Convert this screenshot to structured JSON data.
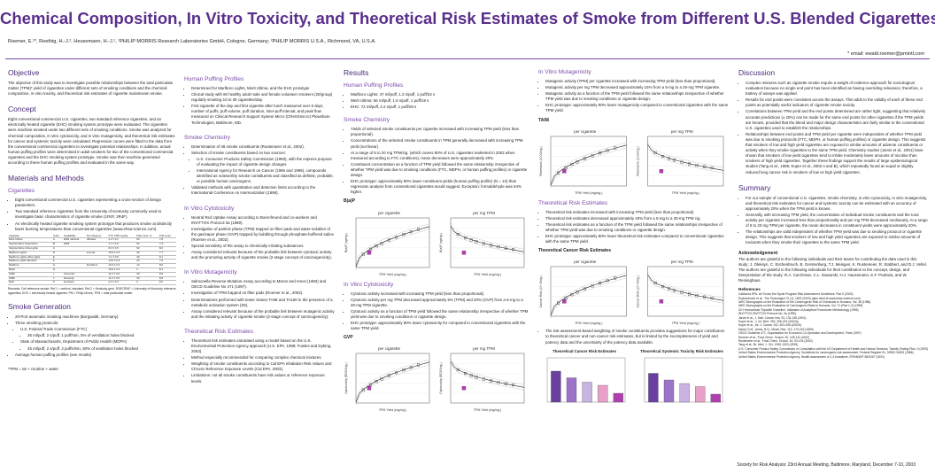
{
  "header": {
    "title": "Chemical Composition, In Vitro Toxicity, and Theoretical Risk Estimates of Smoke from Different U.S. Blended Cigarettes",
    "authors": "Roemer, E.¹*, Roethig, H.-J.², Heusemann, H.-J.¹, ¹PHILIP MORRIS Research Laboratories GmbH, Cologne, Germany; ²PHILIP MORRIS U.S.A., Richmond, VA, U.S.A.",
    "email": "* email: ewald.roemer@pmintl.com"
  },
  "col1": {
    "objective_h": "Objective",
    "objective_p": "The objective of this study was to investigate possible relationships between the total particulate matter (TPM)* yield of cigarettes under different sets of smoking conditions and the chemical composition, in vitro toxicity, and theoretical risk estimates of cigarette mainstream smoke.",
    "concept_h": "Concept",
    "concept_p": "Eight conventional commercial U.S. cigarettes, two standard reference cigarettes, and an electrically heated cigarette (EHC) smoking system prototype were evaluated. The cigarettes were machine-smoked under two different sets of smoking conditions. Smoke was analyzed for chemical composition, in vitro cytotoxicity, and in vitro mutagenicity, and theoretical risk estimates for cancer and systemic toxicity were calculated. Regression curves were fitted to the data from the conventional commercial cigarettes to investigate potential relationships. In addition, actual human puffing profiles were determined in adult smokers for two of the conventional commercial cigarettes and the EHC smoking system prototype. Smoke was then machine-generated according to these human puffing profiles and evaluated in the same way.",
    "mm_h": "Materials and Methods",
    "cig_h": "Cigarettes",
    "cig_items": [
      "Eight conventional commercial U.S. cigarettes representing a cross-section of design parameters.",
      "Two standard reference cigarettes from the University of Kentucky commonly used to investigate basic characteristics of cigarette smoke (1R4F, 2R4F).",
      "An electrically heated cigarette smoking system prototype that produces smoke at distinctly lower burning temperatures than conventional cigarettes (www.ehsa-science.com)."
    ],
    "table_head": [
      "Cigarette",
      "Code",
      "Availability",
      "Tar Category",
      "FTC TPM mg/cig",
      "Filter Vent. %",
      "Puff count"
    ],
    "table_rows": [
      [
        "Merit Ultima",
        "A",
        "2003 national",
        "Ultralow",
        "2.2 ± 0.1",
        "63",
        "7.8"
      ],
      [
        "Virginia Slims Superslims",
        "B",
        "2003",
        "",
        "7.7 ± 0.3",
        "52",
        "7.3"
      ],
      [
        "Virginia Slims Ultra Lights",
        "C",
        "",
        "",
        "8.3 ± 0.5",
        "52",
        "8.0"
      ],
      [
        "Marlboro Lights",
        "D",
        "",
        "Low-tar",
        "10.9 ± 0.6",
        "30",
        "7.7"
      ],
      [
        "Marlboro Lights Ultra Lights",
        "E",
        "",
        "",
        "7.1 ± 0.5",
        "40",
        "8.1"
      ],
      [
        "Marlboro Lights Menthol",
        "F",
        "",
        "",
        "13.0 ± 0.5",
        "23",
        "7.5"
      ],
      [
        "Marlboro",
        "G",
        "",
        "Full-flavor",
        "16.3 ± 0.4",
        "13",
        "8.6"
      ],
      [
        "Basic",
        "H",
        "",
        "",
        "15.6 ± 0.4",
        "2",
        "8.1"
      ],
      [
        "1R4F",
        "I",
        "University",
        "",
        "11.0 ± 0.6",
        "30",
        "8.9"
      ],
      [
        "2R4F",
        "J",
        "Kentucky",
        "",
        "11.4 ± 0.5",
        "30",
        "8.8"
      ],
      [
        "EHC",
        "K",
        "prototype",
        "",
        "2.4 ± 0.3",
        "0",
        "8.0"
      ]
    ],
    "table_note": "Remarks: Cell reference smoke: Ref.1 = method. standard, Ref.2 = Kentucky-gest. 1R4F/2R4F = University of Kentucky reference cigarettes; EHC = electrically heated cigarette; PM = Philip Morris; TPM = total particulate matter",
    "gen_h": "Smoke Generation",
    "gen_items": [
      "20-Port automatic smoking machines (Borgwaldt, Germany)",
      "Three smoking protocols:",
      "U.S. Federal Trade Commission (FTC)",
      "35 ml/puff, 2 s/puff, 1 puff/min, 0% of ventilation holes blocked",
      "State of Massachusetts, Department of Public Health (MDPH)",
      "45 ml/puff, 2 s/puff, 2 puffs/min, 50% of ventilation holes blocked",
      "Average human puffing profiles (see results)"
    ],
    "tpm_note": "*TPM = tar + nicotine + water"
  },
  "col2": {
    "hpp_h": "Human Puffing Profiles",
    "hpp_items": [
      "Determined for Marlboro Lights, Merit Ultima, and the EHC prototype",
      "Clinical study with 60 healthy adult male and female volunteer smokers (20/group) regularly smoking 10 to 30 cigarettes/day.",
      "First cigarette of the day and first cigarette after lunch measured over 8 days, number of puffs, puff volume, puff duration, inter-puff interval, and peak flow measured on Clinical Research Support System Micro (CReSSmicro) Plowshare Technologies, Baltimore, MD."
    ],
    "chem_h": "Smoke Chemistry",
    "chem_items": [
      "Determination of 48 smoke constituents (Rustemeier et al., 2002).",
      "Selection of smoke constituents based on two sources:",
      "U.S. Consumer Products Safety Commission (1993), with the express purpose of evaluating the impact of cigarette design changes.",
      "International Agency for Research on Cancer (1986 and 1999), compounds identified as noteworthy smoke constituents and classified as definite, probable, or possible human carcinogens.",
      "Validated methods with quantitation and detection limits according to the International Conference on Harmonization (1996)."
    ],
    "cyto_h": "In Vitro Cytotoxicity",
    "cyto_items": [
      "Neutral Red Uptake Assay according to Borenfreund and co-workers and INVITTOX Protocol 3a (1990).",
      "Investigation of particle phase (TPM) trapped on filter pads and water-solubles of the gas/vapor phase (GVP) trapped by bubbling through phosphate-buffered saline (Roemer et al., 2002).",
      "Special sensitivity of the assay to chemically irritating substances.",
      "Assay considered relevant because of the probable link between cytotoxic activity and the promoting activity of cigarette smoke (2-stage concept of carcinogenicity)."
    ],
    "muta_h": "In Vitro Mutagenicity",
    "muta_items": [
      "Salmonella Reverse Mutation Assay according to Maron and Ames (1983) and OECD Guideline No 471 (1997).",
      "Investigation of TPM trapped on filter pads (Roemer et al., 2002).",
      "Determinations performed with tester strains TA98 and TA100 in the presence of a metabolic activation system (S9).",
      "Assay considered relevant because of the probable link between mutagenic activity and the initiating activity of cigarette smoke (2-stage concept of carcinogenicity)."
    ],
    "risk_h": "Theoretical Risk Estimates",
    "risk_items": [
      "Theoretical risk estimates calculated using a model based on the U.S. Environmental Protection Agency approach (U.S. EPA, 1998; Fowles and Dybing, 2003).",
      "Method especially recommended for comparing complex chemical mixtures.",
      "Weighting of smoke constituents according to Cal EPA Inhalation Risk Values and Chronic Reference Exposure Levels (Cal EPA, 2003).",
      "Limitations: not all smoke constituents have risk values or reference exposure levels."
    ]
  },
  "col3": {
    "results_h": "Results",
    "hpp_h": "Human Puffing Profiles",
    "hpp_items": [
      "Marlboro Lights: 47 ml/puff, 1.2 s/puff, 1 puff/22 s",
      "Merit Ultima: 56 ml/puff, 1.5 s/puff, 1 puff/19 s",
      "EHC: 72 ml/puff, 2.2 s/puff, 1 puff/28 s"
    ],
    "chem_h": "Smoke Chemistry",
    "chem_items": [
      "Yields of selected smoke constituents per cigarette increased with increasing TPM yield (less than proportional).",
      "Concentrations of the selected smoke constituents in TPM generally decreased with increasing TPM yield (not linear).",
      "At a range of 5 to 20 mg TPM/cig. (which covers 80% of U.S. cigarettes marketed in 2002 when measured according to FTC conditions), mean decreases were approximately 20%.",
      "Constituent concentration as a function of TPM yield followed the same relationship irrespective of whether TPM yield was due to smoking conditions (FTC, MDPH, or human puffing profiles) or cigarette design.",
      "EHC prototype: approximately 90% lower constituent yields (human puffing profile) (N = 13) than regression analysis from conventional cigarettes would suggest. Exception: formaldehyde was 64% higher."
    ],
    "bap_label": "B(a)P",
    "cyto_h": "In Vitro Cytotoxicity",
    "cyto_items": [
      "Cytotoxic activity increased with increasing TPM yield (less than proportional).",
      "Cytotoxic activity per mg TPM decreased approximately 5% (TPM) and 20% (GVP) from a 5-mg to a 20-mg TPM cigarette.",
      "Cytotoxic activity as a function of TPM yield followed the same relationship irrespective of whether TPM yield was due to smoking conditions or cigarette design.",
      "EHC prototype: approximately 80% lower cytotoxicity for compared to conventional cigarettes with the same TPM yield."
    ],
    "gvp_label": "GVP"
  },
  "col4": {
    "muta_h": "In Vitro Mutagenicity",
    "muta_items": [
      "Mutagenic activity (TPM) per cigarette increased with increasing TPM yield (less than proportional).",
      "Mutagenic activity per mg TPM decreased approximately 15% from a 5-mg to a 20-mg TPM cigarette.",
      "Mutagenic activity as a function of the TPM yield followed the same relationships irrespective of whether TPM yield was due to smoking conditions or cigarette design.",
      "EHC prototype: approximately 90% lower mutagenicity compared to conventional cigarettes with the same TPM yield."
    ],
    "ta98_label": "TA98",
    "risk_h": "Theoretical Risk Estimates",
    "risk_items": [
      "Theoretical risk estimates increased with increasing TPM yield (less than proportional).",
      "Theoretical risk estimates decreased approximately 40% from a 5-mg to a 20-mg TPM cig.",
      "Theoretical risk estimates as a function of the TPM yield followed the same relationships irrespective of whether TPM yield was due to smoking conditions or cigarette design.",
      "EHC prototype: approximately 80% lower theoretical risk estimates compared to conventional cigarettes with the same TPM yield."
    ],
    "cancer_label": "Theoretical Cancer Risk Estimates",
    "weight_items": [
      "The risk assessment-based weighting of smoke constituents provides suggestions for major contributors to theoretical cancer and non-cancer risk estimates, but is limited by the incompleteness of yield and potency data and the uncertainty of the potency data available."
    ],
    "bar1_label": "Theoretical Cancer Risk Estimates",
    "bar2_label": "Theoretical Systemic Toxicity Risk Estimates"
  },
  "col5": {
    "disc_h": "Discussion",
    "disc_items": [
      "Complex mixtures such as cigarette smoke require a weight of evidence approach for toxicological evaluation because no single end point has been identified as having overriding relevance; therefore, a battery of assays was applied.",
      "Results for end points were consistent across the assays. This adds to the validity of each of these end points as potentially useful indicators of cigarette smoke toxicity.",
      "Correlations between TPM yield and the end points determined are rather tight, suggesting that relatively accurate predictions (± 20%) can be made for the same end points for other cigarettes if the TPM yields are known, provided that the blend and major design characteristics are fairly similar to the conventional U.S. cigarettes used to establish the relationships.",
      "Relationships between end points and TPM yield per cigarette were independent of whether TPM yield was due to smoking protocols (FTC, MDPH, or human puffing profiles) or cigarette design. This suggests that smokers of low and high yield cigarettes are exposed to similar amounts of adverse constituents or activity when they smoke cigarettes to the same TPM yield. Chemistry studies (Jarvis et al., 2001) have shown that smokers of low yield cigarettes tend to inhale moderately lower amounts of nicotine than smokers of high yield cigarettes. Together these findings support the results of large epidemiological studies (Tang et al., 1995; Kuper et al., 2002 A and B), which repeatedly found an equal or slightly reduced lung cancer risk in smokers of low vs high yield cigarettes."
    ],
    "sum_h": "Summary",
    "sum_items": [
      "For our sample of conventional U.S. cigarettes, smoke chemistry, in vitro cytotoxicity, in vitro mutagenicity, and theoretical risk estimates for cancer and systemic toxicity can be estimated with an accuracy of approximately 20% when the TPM yield is known.",
      "Generally, with increasing TPM yield, the concentration of individual smoke constituents and the toxic activity per cigarette increased less than proportionally and per mg TPM decreased nonlinearly. At a range of 5 to 20 mg TPM per cigarette, the mean decreases in constituent yields were approximately 20%.",
      "The relationships are valid independent of whether TPM yield was due to smoking protocol or cigarette design. This suggests that smokers of low and high yield cigarettes are exposed to similar amounts of toxicants when they smoke their cigarettes to the same TPM yield."
    ],
    "ack_h": "Acknowledgement",
    "ack_p": "The authors are grateful to the following individuals and their teams for contributing the data used in this study: J. Oleksyn, C. Eschenbruch, B. Gerstenberg, T.J. Meisgen, K. Rustemeier, R. Stabbert, and D.J. Veltel. The authors are grateful to the following individuals for their contribution to the concept, design, and interpretation of the study: R.A. Carchman, C.L. Gaworski, H.J. Haussmann, K.F. Podraza, and W. Reininghaus.",
    "ref_h": "References",
    "refs": [
      "California EPA. Air Toxics Hot Spots Program Risk Assessment Guidelines. Part II (2003)",
      "Eschenbruch et al., The Toxicologist 72 (1), 1823 (2003) (also cited at www.ehsa-science.com)",
      "IARC Monographs on the Evaluation of the Carcinogenic Risk of Chemicals to Humans, Vol. 38 (1986)",
      "IARC Monographs on the Evaluation of Carcinogenic Risks to Humans, Vol. 71 (Part 1-3) (1999)",
      "ICH Harmonised Tripartite Guideline, Validation of Analytical Procedures Methodology (1996)",
      "INVITTOX INVITTOX Protocol No. 3a (1990)",
      "Jarvis et al., J. Natl. Cancer Inst. 93, 134-138 (2001)",
      "Kuper et al., J. Int. Med. 252, 206-224 (2002a)",
      "Kuper et al., Int. J. Cancer 102, 403-408 (2002b)",
      "Maron D.M., Ames, B.N., Mutat. Res. 113, 173-215 (1983)",
      "OECD Guideline 471. Organisation for Economic Co-Operation and Development, Paris (1997)",
      "Roemer et al., Food Chem. Toxicol. 40, 105-111 (2002)",
      "Rustemeier et al., Food Chem. Toxicol. 40, 93-104 (2002)",
      "Tang et al., Br. Med. J. 311, 1530-1533 (1995)",
      "U.S. Consumer Product Safety Commission in Consultation with the US Department of Health and Human Services, Toxicity Testing Plan, 9 (1993)",
      "United States Environmental Protection Agency, Guidelines for carcinogenic risk assessment. Federal Register 51, 33992-34003 (1986)",
      "United States Environmental Protection Agency, Health assessment of 1,3-butadiene, EPA/600/P-98/001F (2002)"
    ]
  },
  "footer": "Society for Risk Analysis: 23rd Annual Meeting, Baltimore, Maryland, December 7-10, 2003",
  "chart_text": {
    "per_cig": "per cigarette",
    "per_mg": "per mg TPM",
    "x_tpm": "TPM Yield (mg/cig.)",
    "y_bap": "B(a)P (ng/cig.)",
    "y_gvp": "Cytotoxicity (EC50/cig.)",
    "y_ta98": "Revertants (1000/cig.)",
    "y_cancer": "Cancer Risk (10^-5/cig.)"
  }
}
